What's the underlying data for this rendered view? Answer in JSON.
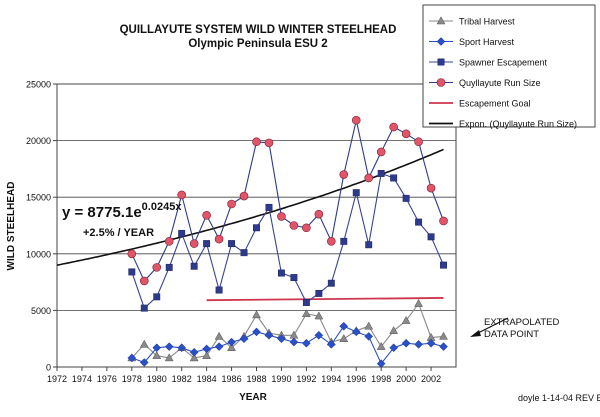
{
  "chart_data": {
    "type": "line",
    "title": "QUILLAYUTE SYSTEM WILD WINTER STEELHEAD",
    "subtitle": "Olympic Peninsula ESU 2",
    "xlabel": "YEAR",
    "ylabel": "WILD STEELHEAD",
    "xlim": [
      1972,
      2004
    ],
    "ylim": [
      0,
      25000
    ],
    "x_ticks": [
      1972,
      1974,
      1976,
      1978,
      1980,
      1982,
      1984,
      1986,
      1988,
      1990,
      1992,
      1994,
      1996,
      1998,
      2000,
      2002
    ],
    "y_ticks": [
      0,
      5000,
      10000,
      15000,
      20000,
      25000
    ],
    "y_tick_labels": [
      "0",
      "5000",
      "10000",
      "15000",
      "20000",
      "25000"
    ],
    "grid": "horizontal",
    "legend_position": "top-right",
    "colors": {
      "tribal": "#8a8a8a",
      "sport": "#2a50c8",
      "spawner": "#2e3a8c",
      "runsize": "#e0556a",
      "goal": "#d0354e",
      "trend": "#111111"
    },
    "years": [
      1978,
      1979,
      1980,
      1981,
      1982,
      1983,
      1984,
      1985,
      1986,
      1987,
      1988,
      1989,
      1990,
      1991,
      1992,
      1993,
      1994,
      1995,
      1996,
      1997,
      1998,
      1999,
      2000,
      2001,
      2002,
      2003
    ],
    "series": [
      {
        "name": "Tribal Harvest",
        "marker": "triangle",
        "color": "#8a8a8a",
        "values": [
          800,
          2000,
          1000,
          800,
          1700,
          800,
          1000,
          2700,
          1700,
          2700,
          4600,
          3000,
          2800,
          2800,
          4700,
          4500,
          2200,
          2500,
          3200,
          3600,
          1800,
          3200,
          4100,
          5600,
          2600,
          2700
        ]
      },
      {
        "name": "Sport Harvest",
        "marker": "diamond",
        "color": "#2a50c8",
        "values": [
          800,
          400,
          1700,
          1800,
          1700,
          1300,
          1600,
          1800,
          2200,
          2500,
          3100,
          2800,
          2500,
          2200,
          2100,
          2800,
          2000,
          3600,
          3100,
          2700,
          300,
          1700,
          2100,
          2000,
          2100,
          1800
        ]
      },
      {
        "name": "Spawner Escapement",
        "marker": "square",
        "color": "#2e3a8c",
        "values": [
          8400,
          5200,
          6200,
          8800,
          11800,
          8900,
          10900,
          6800,
          10900,
          10100,
          12300,
          14100,
          8300,
          7900,
          5700,
          6500,
          7400,
          11100,
          15400,
          10800,
          17100,
          16700,
          14900,
          12800,
          11500,
          9000
        ]
      },
      {
        "name": "Quyllayute Run Size",
        "marker": "circle",
        "color": "#e0556a",
        "values": [
          10000,
          7600,
          8800,
          11100,
          15200,
          10900,
          13400,
          11300,
          14400,
          15100,
          19900,
          19800,
          13300,
          12500,
          12300,
          13500,
          11100,
          17000,
          21800,
          16700,
          19000,
          21200,
          20600,
          19900,
          15800,
          12900
        ]
      },
      {
        "name": "Escapement Goal",
        "values": [
          5900,
          6100
        ],
        "x": [
          1984,
          2003
        ],
        "color": "#d0354e"
      },
      {
        "name": "Expon. (Quyllayute Run Size)",
        "color": "#111111"
      }
    ],
    "trend_model": {
      "a": 8775.1,
      "b": 0.0245,
      "x0": 1971,
      "x_range": [
        1972,
        2003
      ]
    },
    "annotations": {
      "equation_base": "y = 8775.1e",
      "equation_exponent": "0.0245x",
      "growth": "+2.5% / YEAR",
      "extrapolated_line1": "EXTRAPOLATED",
      "extrapolated_line2": "DATA  POINT",
      "credit": "doyle 1-14-04 REV E"
    }
  }
}
